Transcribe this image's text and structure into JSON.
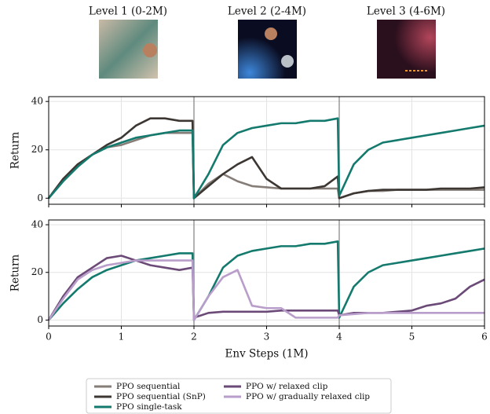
{
  "panels": {
    "titles": [
      "Level 1 (0-2M)",
      "Level 2 (2-4M)",
      "Level 3 (4-6M)"
    ]
  },
  "chart_data": [
    {
      "type": "line",
      "ylabel": "Return",
      "grid": true,
      "x": [
        0,
        0.2,
        0.4,
        0.6,
        0.8,
        1.0,
        1.2,
        1.4,
        1.6,
        1.8,
        1.98,
        2.0,
        2.2,
        2.4,
        2.6,
        2.8,
        3.0,
        3.2,
        3.4,
        3.6,
        3.8,
        3.98,
        4.0,
        4.2,
        4.4,
        4.6,
        4.8,
        5.0,
        5.2,
        5.4,
        5.6,
        5.8,
        6.0
      ],
      "xlim": [
        0,
        6
      ],
      "xticks": [
        0,
        1,
        2,
        3,
        4,
        5,
        6
      ],
      "ylim": [
        -2.5,
        42
      ],
      "yticks": [
        0,
        20,
        40
      ],
      "vlines": [
        2,
        4
      ],
      "series": [
        {
          "name": "PPO sequential",
          "color": "#857d77",
          "values": [
            0,
            8,
            14,
            18,
            21,
            22,
            24,
            26,
            27,
            27,
            27,
            0,
            6,
            10,
            7,
            5,
            4.5,
            4,
            4,
            4,
            4,
            4,
            0,
            2,
            3,
            3,
            3.5,
            3.5,
            3.5,
            3.5,
            3.5,
            3.5,
            3.5
          ]
        },
        {
          "name": "PPO sequential (SnP)",
          "color": "#3d3733",
          "values": [
            0,
            8,
            14,
            18,
            22,
            25,
            30,
            33,
            33,
            32,
            32,
            0,
            5,
            10,
            14,
            17,
            8,
            4,
            4,
            4,
            5,
            9,
            0,
            2,
            3,
            3.5,
            3.5,
            3.5,
            3.5,
            4,
            4,
            4,
            4.5
          ]
        },
        {
          "name": "PPO single-task",
          "color": "#137a6d",
          "values": [
            0,
            7,
            13,
            18,
            21,
            23,
            25,
            26,
            27,
            28,
            28,
            0,
            10,
            22,
            27,
            29,
            30,
            31,
            31,
            32,
            32,
            33,
            1,
            14,
            20,
            23,
            24,
            25,
            26,
            27,
            28,
            29,
            30
          ]
        }
      ]
    },
    {
      "type": "line",
      "ylabel": "Return",
      "xlabel": "Env Steps (1M)",
      "grid": true,
      "x": [
        0,
        0.2,
        0.4,
        0.6,
        0.8,
        1.0,
        1.2,
        1.4,
        1.6,
        1.8,
        1.98,
        2.0,
        2.2,
        2.4,
        2.6,
        2.8,
        3.0,
        3.2,
        3.4,
        3.6,
        3.8,
        3.98,
        4.0,
        4.2,
        4.4,
        4.6,
        4.8,
        5.0,
        5.2,
        5.4,
        5.6,
        5.8,
        6.0
      ],
      "xlim": [
        0,
        6
      ],
      "xticks": [
        0,
        1,
        2,
        3,
        4,
        5,
        6
      ],
      "ylim": [
        -2.5,
        42
      ],
      "yticks": [
        0,
        20,
        40
      ],
      "vlines": [
        2,
        4
      ],
      "series": [
        {
          "name": "PPO single-task",
          "color": "#137a6d",
          "values": [
            0,
            7,
            13,
            18,
            21,
            23,
            25,
            26,
            27,
            28,
            28,
            0,
            10,
            22,
            27,
            29,
            30,
            31,
            31,
            32,
            32,
            33,
            1,
            14,
            20,
            23,
            24,
            25,
            26,
            27,
            28,
            29,
            30
          ]
        },
        {
          "name": "PPO w/ relaxed clip",
          "color": "#6b4a77",
          "values": [
            0,
            10,
            18,
            22,
            26,
            27,
            25,
            23,
            22,
            21,
            22,
            1,
            3,
            3.5,
            3.5,
            3.5,
            3.5,
            4,
            4,
            4,
            4,
            4,
            2,
            3,
            3,
            3,
            3.5,
            4,
            6,
            7,
            9,
            14,
            17
          ]
        },
        {
          "name": "PPO w/ gradually relaxed clip",
          "color": "#b99dca",
          "values": [
            0,
            9,
            17,
            21,
            23,
            24,
            25,
            25,
            25,
            25,
            25,
            0,
            10,
            18,
            21,
            6,
            5,
            5,
            1,
            1,
            1,
            1,
            2,
            2.5,
            3,
            3,
            3,
            3,
            3,
            3,
            3,
            3,
            3
          ]
        }
      ]
    }
  ]
}
